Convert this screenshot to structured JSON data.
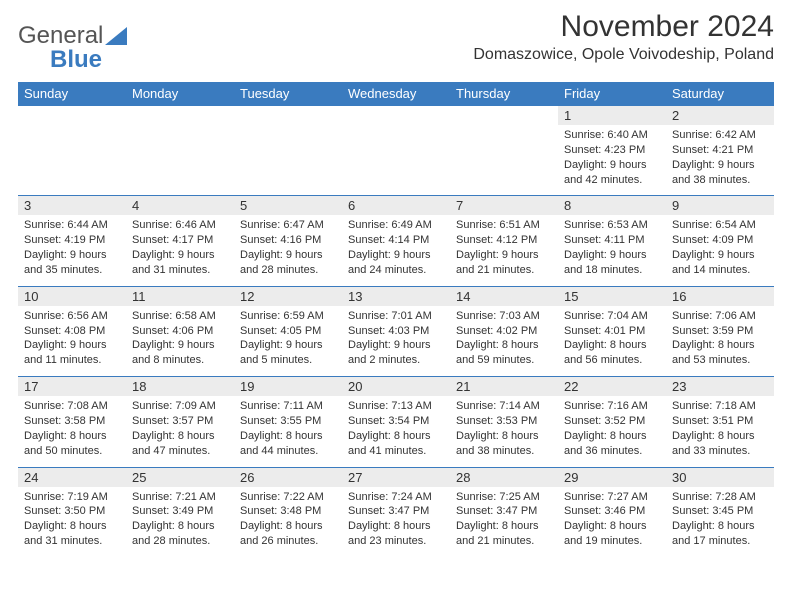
{
  "logo": {
    "text1": "General",
    "text2": "Blue"
  },
  "title": "November 2024",
  "location": "Domaszowice, Opole Voivodeship, Poland",
  "colors": {
    "header_bg": "#3a7bbf",
    "header_text": "#ffffff",
    "daynum_bg": "#ececec",
    "border": "#3a7bbf",
    "body_text": "#333333",
    "background": "#ffffff"
  },
  "typography": {
    "title_fontsize": 30,
    "location_fontsize": 16,
    "dayhead_fontsize": 13,
    "cell_fontsize": 11
  },
  "day_names": [
    "Sunday",
    "Monday",
    "Tuesday",
    "Wednesday",
    "Thursday",
    "Friday",
    "Saturday"
  ],
  "weeks": [
    {
      "nums": [
        "",
        "",
        "",
        "",
        "",
        "1",
        "2"
      ],
      "cells": [
        null,
        null,
        null,
        null,
        null,
        {
          "sunrise": "Sunrise: 6:40 AM",
          "sunset": "Sunset: 4:23 PM",
          "day1": "Daylight: 9 hours",
          "day2": "and 42 minutes."
        },
        {
          "sunrise": "Sunrise: 6:42 AM",
          "sunset": "Sunset: 4:21 PM",
          "day1": "Daylight: 9 hours",
          "day2": "and 38 minutes."
        }
      ]
    },
    {
      "nums": [
        "3",
        "4",
        "5",
        "6",
        "7",
        "8",
        "9"
      ],
      "cells": [
        {
          "sunrise": "Sunrise: 6:44 AM",
          "sunset": "Sunset: 4:19 PM",
          "day1": "Daylight: 9 hours",
          "day2": "and 35 minutes."
        },
        {
          "sunrise": "Sunrise: 6:46 AM",
          "sunset": "Sunset: 4:17 PM",
          "day1": "Daylight: 9 hours",
          "day2": "and 31 minutes."
        },
        {
          "sunrise": "Sunrise: 6:47 AM",
          "sunset": "Sunset: 4:16 PM",
          "day1": "Daylight: 9 hours",
          "day2": "and 28 minutes."
        },
        {
          "sunrise": "Sunrise: 6:49 AM",
          "sunset": "Sunset: 4:14 PM",
          "day1": "Daylight: 9 hours",
          "day2": "and 24 minutes."
        },
        {
          "sunrise": "Sunrise: 6:51 AM",
          "sunset": "Sunset: 4:12 PM",
          "day1": "Daylight: 9 hours",
          "day2": "and 21 minutes."
        },
        {
          "sunrise": "Sunrise: 6:53 AM",
          "sunset": "Sunset: 4:11 PM",
          "day1": "Daylight: 9 hours",
          "day2": "and 18 minutes."
        },
        {
          "sunrise": "Sunrise: 6:54 AM",
          "sunset": "Sunset: 4:09 PM",
          "day1": "Daylight: 9 hours",
          "day2": "and 14 minutes."
        }
      ]
    },
    {
      "nums": [
        "10",
        "11",
        "12",
        "13",
        "14",
        "15",
        "16"
      ],
      "cells": [
        {
          "sunrise": "Sunrise: 6:56 AM",
          "sunset": "Sunset: 4:08 PM",
          "day1": "Daylight: 9 hours",
          "day2": "and 11 minutes."
        },
        {
          "sunrise": "Sunrise: 6:58 AM",
          "sunset": "Sunset: 4:06 PM",
          "day1": "Daylight: 9 hours",
          "day2": "and 8 minutes."
        },
        {
          "sunrise": "Sunrise: 6:59 AM",
          "sunset": "Sunset: 4:05 PM",
          "day1": "Daylight: 9 hours",
          "day2": "and 5 minutes."
        },
        {
          "sunrise": "Sunrise: 7:01 AM",
          "sunset": "Sunset: 4:03 PM",
          "day1": "Daylight: 9 hours",
          "day2": "and 2 minutes."
        },
        {
          "sunrise": "Sunrise: 7:03 AM",
          "sunset": "Sunset: 4:02 PM",
          "day1": "Daylight: 8 hours",
          "day2": "and 59 minutes."
        },
        {
          "sunrise": "Sunrise: 7:04 AM",
          "sunset": "Sunset: 4:01 PM",
          "day1": "Daylight: 8 hours",
          "day2": "and 56 minutes."
        },
        {
          "sunrise": "Sunrise: 7:06 AM",
          "sunset": "Sunset: 3:59 PM",
          "day1": "Daylight: 8 hours",
          "day2": "and 53 minutes."
        }
      ]
    },
    {
      "nums": [
        "17",
        "18",
        "19",
        "20",
        "21",
        "22",
        "23"
      ],
      "cells": [
        {
          "sunrise": "Sunrise: 7:08 AM",
          "sunset": "Sunset: 3:58 PM",
          "day1": "Daylight: 8 hours",
          "day2": "and 50 minutes."
        },
        {
          "sunrise": "Sunrise: 7:09 AM",
          "sunset": "Sunset: 3:57 PM",
          "day1": "Daylight: 8 hours",
          "day2": "and 47 minutes."
        },
        {
          "sunrise": "Sunrise: 7:11 AM",
          "sunset": "Sunset: 3:55 PM",
          "day1": "Daylight: 8 hours",
          "day2": "and 44 minutes."
        },
        {
          "sunrise": "Sunrise: 7:13 AM",
          "sunset": "Sunset: 3:54 PM",
          "day1": "Daylight: 8 hours",
          "day2": "and 41 minutes."
        },
        {
          "sunrise": "Sunrise: 7:14 AM",
          "sunset": "Sunset: 3:53 PM",
          "day1": "Daylight: 8 hours",
          "day2": "and 38 minutes."
        },
        {
          "sunrise": "Sunrise: 7:16 AM",
          "sunset": "Sunset: 3:52 PM",
          "day1": "Daylight: 8 hours",
          "day2": "and 36 minutes."
        },
        {
          "sunrise": "Sunrise: 7:18 AM",
          "sunset": "Sunset: 3:51 PM",
          "day1": "Daylight: 8 hours",
          "day2": "and 33 minutes."
        }
      ]
    },
    {
      "nums": [
        "24",
        "25",
        "26",
        "27",
        "28",
        "29",
        "30"
      ],
      "cells": [
        {
          "sunrise": "Sunrise: 7:19 AM",
          "sunset": "Sunset: 3:50 PM",
          "day1": "Daylight: 8 hours",
          "day2": "and 31 minutes."
        },
        {
          "sunrise": "Sunrise: 7:21 AM",
          "sunset": "Sunset: 3:49 PM",
          "day1": "Daylight: 8 hours",
          "day2": "and 28 minutes."
        },
        {
          "sunrise": "Sunrise: 7:22 AM",
          "sunset": "Sunset: 3:48 PM",
          "day1": "Daylight: 8 hours",
          "day2": "and 26 minutes."
        },
        {
          "sunrise": "Sunrise: 7:24 AM",
          "sunset": "Sunset: 3:47 PM",
          "day1": "Daylight: 8 hours",
          "day2": "and 23 minutes."
        },
        {
          "sunrise": "Sunrise: 7:25 AM",
          "sunset": "Sunset: 3:47 PM",
          "day1": "Daylight: 8 hours",
          "day2": "and 21 minutes."
        },
        {
          "sunrise": "Sunrise: 7:27 AM",
          "sunset": "Sunset: 3:46 PM",
          "day1": "Daylight: 8 hours",
          "day2": "and 19 minutes."
        },
        {
          "sunrise": "Sunrise: 7:28 AM",
          "sunset": "Sunset: 3:45 PM",
          "day1": "Daylight: 8 hours",
          "day2": "and 17 minutes."
        }
      ]
    }
  ]
}
